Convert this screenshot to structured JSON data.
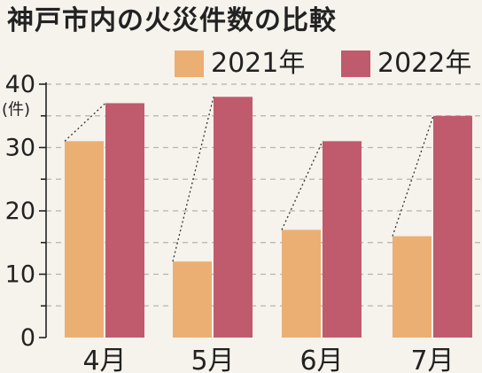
{
  "chart_data": {
    "type": "bar",
    "title": "神戸市内の火災件数の比較",
    "ylabel": "(件)",
    "xlabel": "",
    "categories": [
      "4月",
      "5月",
      "6月",
      "7月"
    ],
    "series": [
      {
        "name": "2021年",
        "values": [
          31,
          12,
          17,
          16
        ],
        "color": "#ebaf73"
      },
      {
        "name": "2022年",
        "values": [
          37,
          38,
          31,
          35
        ],
        "color": "#c05b6e"
      }
    ],
    "ylim": [
      0,
      40
    ],
    "yticks": [
      0,
      10,
      20,
      30,
      40
    ],
    "grid": true,
    "legend_position": "top-right"
  },
  "colors": {
    "background": "#f6f2ec",
    "gridline": "#b9b3ad",
    "connector": "#333333"
  }
}
